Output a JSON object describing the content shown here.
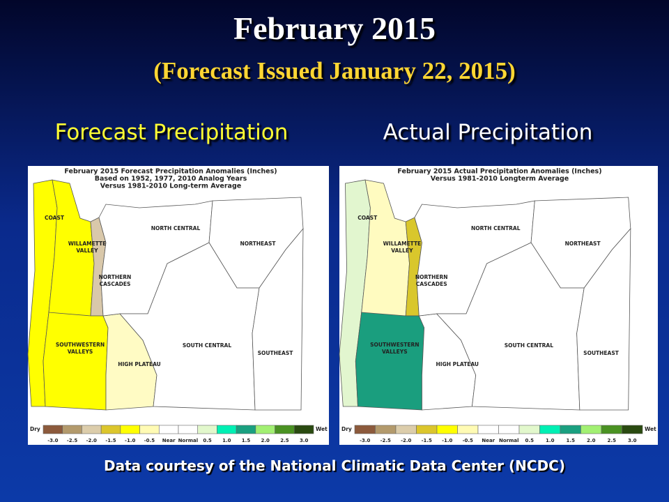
{
  "slide": {
    "title": "February 2015",
    "subtitle": "(Forecast Issued January 22, 2015)",
    "footer": "Data courtesy of the National Climatic Data Center (NCDC)",
    "maps": [
      {
        "heading": "Forecast Precipitation",
        "heading_color": "#ffff33",
        "title_lines": [
          "February 2015 Forecast Precipitation Anomalies (Inches)",
          "Based on 1952, 1977, 2010 Analog Years",
          "Versus 1981-2010 Long-term Average"
        ],
        "regions": [
          {
            "name_lines": [
              "COAST"
            ],
            "color": "#ffff00"
          },
          {
            "name_lines": [
              "WILLAMETTE",
              "VALLEY"
            ],
            "color": "#ffff00"
          },
          {
            "name_lines": [
              "NORTHERN",
              "CASCADES"
            ],
            "color": "#d9c8aa"
          },
          {
            "name_lines": [
              "SOUTHWESTERN",
              "VALLEYS"
            ],
            "color": "#ffff00"
          },
          {
            "name_lines": [
              "HIGH PLATEAU"
            ],
            "color": "#fffbc4"
          },
          {
            "name_lines": [
              "NORTH CENTRAL"
            ],
            "color": "#ffffff"
          },
          {
            "name_lines": [
              "NORTHEAST"
            ],
            "color": "#ffffff"
          },
          {
            "name_lines": [
              "SOUTH CENTRAL"
            ],
            "color": "#ffffff"
          },
          {
            "name_lines": [
              "SOUTHEAST"
            ],
            "color": "#ffffff"
          }
        ]
      },
      {
        "heading": "Actual Precipitation",
        "heading_color": "#ffffff",
        "title_lines": [
          "February 2015 Actual Precipitation Anomalies (Inches)",
          "Versus 1981-2010 Longterm Average"
        ],
        "regions": [
          {
            "name_lines": [
              "COAST"
            ],
            "color": "#e2f6cf"
          },
          {
            "name_lines": [
              "WILLAMETTE",
              "VALLEY"
            ],
            "color": "#fffbc0"
          },
          {
            "name_lines": [
              "NORTHERN",
              "CASCADES"
            ],
            "color": "#d9c72c"
          },
          {
            "name_lines": [
              "SOUTHWESTERN",
              "VALLEYS"
            ],
            "color": "#1a9e7e"
          },
          {
            "name_lines": [
              "HIGH PLATEAU"
            ],
            "color": "#ffffff"
          },
          {
            "name_lines": [
              "NORTH CENTRAL"
            ],
            "color": "#ffffff"
          },
          {
            "name_lines": [
              "NORTHEAST"
            ],
            "color": "#ffffff"
          },
          {
            "name_lines": [
              "SOUTH CENTRAL"
            ],
            "color": "#ffffff"
          },
          {
            "name_lines": [
              "SOUTHEAST"
            ],
            "color": "#ffffff"
          }
        ]
      }
    ],
    "legend": {
      "dry": "Dry",
      "wet": "Wet",
      "labels": [
        "-3.0",
        "-2.5",
        "-2.0",
        "-1.5",
        "-1.0",
        "-0.5",
        "Near",
        "Normal",
        "0.5",
        "1.0",
        "1.5",
        "2.0",
        "2.5",
        "3.0"
      ],
      "colors": [
        "#8c5a3c",
        "#b39a6c",
        "#dccdab",
        "#dcc62c",
        "#ffff00",
        "#fffbb4",
        "#ffffff",
        "#ffffff",
        "#e2f8cc",
        "#00f0b4",
        "#1aa080",
        "#a2f072",
        "#4a9222",
        "#2a4a10"
      ]
    }
  }
}
